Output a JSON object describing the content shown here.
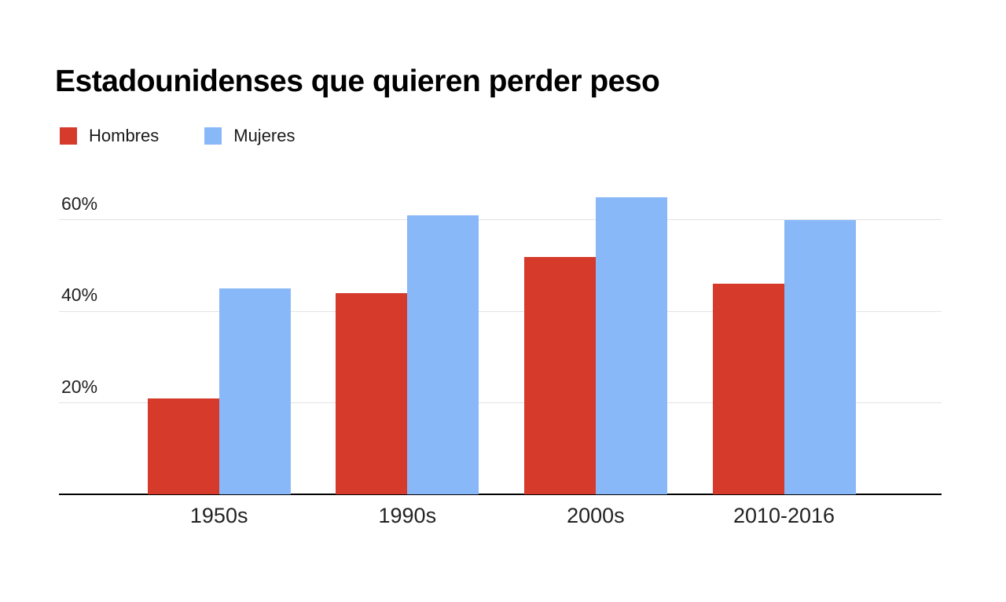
{
  "page": {
    "background": "#ffffff"
  },
  "chart_data": {
    "type": "bar",
    "title": "Estadounidenses que quieren perder peso",
    "categories": [
      "1950s",
      "1990s",
      "2000s",
      "2010-2016"
    ],
    "series": [
      {
        "name": "Hombres",
        "color": "#d53a2b",
        "values": [
          21,
          44,
          52,
          46
        ]
      },
      {
        "name": "Mujeres",
        "color": "#88b8f8",
        "values": [
          45,
          61,
          65,
          60
        ]
      }
    ],
    "unit": "%",
    "y_ticks": [
      {
        "value": 20,
        "label": "20%"
      },
      {
        "value": 40,
        "label": "40%"
      },
      {
        "value": 60,
        "label": "60%"
      }
    ],
    "ylim": [
      0,
      70
    ],
    "xlabel": "",
    "ylabel": "",
    "grid": true,
    "legend_position": "top-left",
    "colors": {
      "gridline": "#e3e3e3",
      "axis_line": "#000000",
      "title_text": "#000000",
      "tick_text": "#222222"
    }
  }
}
